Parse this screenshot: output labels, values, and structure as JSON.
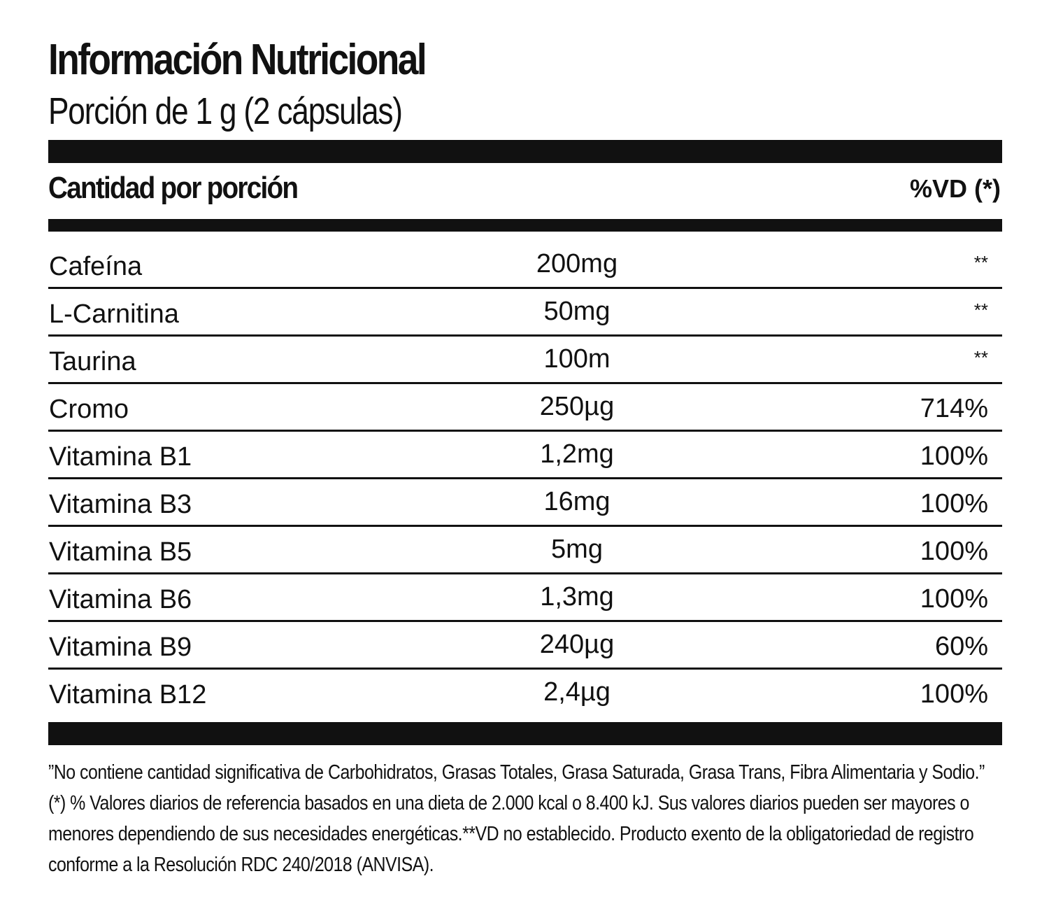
{
  "label": {
    "title": "Información Nutricional",
    "serving": "Porción de 1 g (2 cápsulas)",
    "header": {
      "amount_per_serving": "Cantidad por porción",
      "dv": "%VD (*)"
    },
    "rows": [
      {
        "name": "Cafeína",
        "amount": "200mg",
        "dv": "**"
      },
      {
        "name": "L-Carnitina",
        "amount": "50mg",
        "dv": "**"
      },
      {
        "name": "Taurina",
        "amount": "100m",
        "dv": "**"
      },
      {
        "name": "Cromo",
        "amount": "250µg",
        "dv": "714%"
      },
      {
        "name": "Vitamina B1",
        "amount": "1,2mg",
        "dv": "100%"
      },
      {
        "name": "Vitamina B3",
        "amount": "16mg",
        "dv": "100%"
      },
      {
        "name": "Vitamina B5",
        "amount": "5mg",
        "dv": "100%"
      },
      {
        "name": "Vitamina B6",
        "amount": "1,3mg",
        "dv": "100%"
      },
      {
        "name": "Vitamina B9",
        "amount": "240µg",
        "dv": "60%"
      },
      {
        "name": "Vitamina B12",
        "amount": "2,4µg",
        "dv": "100%"
      }
    ],
    "footnote": "”No contiene cantidad significativa de Carbohidratos, Grasas Totales, Grasa Saturada, Grasa Trans, Fibra Alimentaria y Sodio.” (*) % Valores diarios de referencia basados en una dieta de 2.000 kcal o 8.400 kJ. Sus valores diarios pueden ser mayores o menores dependiendo de sus necesidades energéticas.**VD no establecido. Producto exento de la obligatoriedad de registro conforme a la Resolución RDC 240/2018 (ANVISA)."
  },
  "colors": {
    "text": "#111111",
    "background": "#ffffff"
  }
}
